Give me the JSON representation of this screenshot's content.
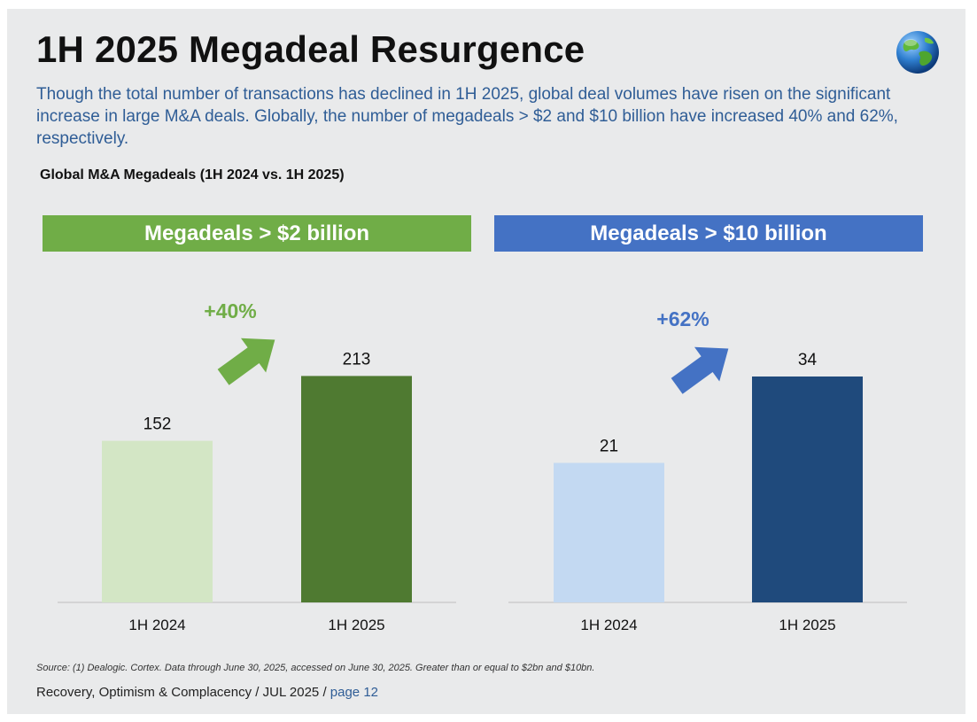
{
  "title": "1H 2025 Megadeal Resurgence",
  "subtitle": "Though the total number of transactions has declined in 1H 2025, global deal volumes have risen on the significant increase in large M&A deals.  Globally, the number of megadeals > $2 and $10 billion have increased 40% and 62%, respectively.",
  "chart_caption": "Global M&A Megadeals (1H 2024 vs. 1H 2025)",
  "source": "Source: (1) Dealogic. Cortex. Data through June 30, 2025, accessed on June 30, 2025. Greater than or equal to $2bn and $10bn.",
  "footer": {
    "text": "Recovery, Optimism & Complacency / JUL 2025 / ",
    "page": "page 12"
  },
  "colors": {
    "green_header": "#70ad47",
    "blue_header": "#4472c4",
    "green_light": "#d3e6c5",
    "green_dark": "#4f7a31",
    "blue_light": "#c3d9f2",
    "blue_dark": "#1f4a7c",
    "green_arrow": "#70ad47",
    "blue_arrow": "#4472c4"
  },
  "chart_data": [
    {
      "type": "bar",
      "header": "Megadeals  > $2 billion",
      "categories": [
        "1H 2024",
        "1H 2025"
      ],
      "values": [
        152,
        213
      ],
      "change_label": "+40%",
      "ylim": [
        0,
        300
      ]
    },
    {
      "type": "bar",
      "header": "Megadeals  > $10 billion",
      "categories": [
        "1H 2024",
        "1H 2025"
      ],
      "values": [
        21,
        34
      ],
      "change_label": "+62%",
      "ylim": [
        0,
        48
      ]
    }
  ]
}
